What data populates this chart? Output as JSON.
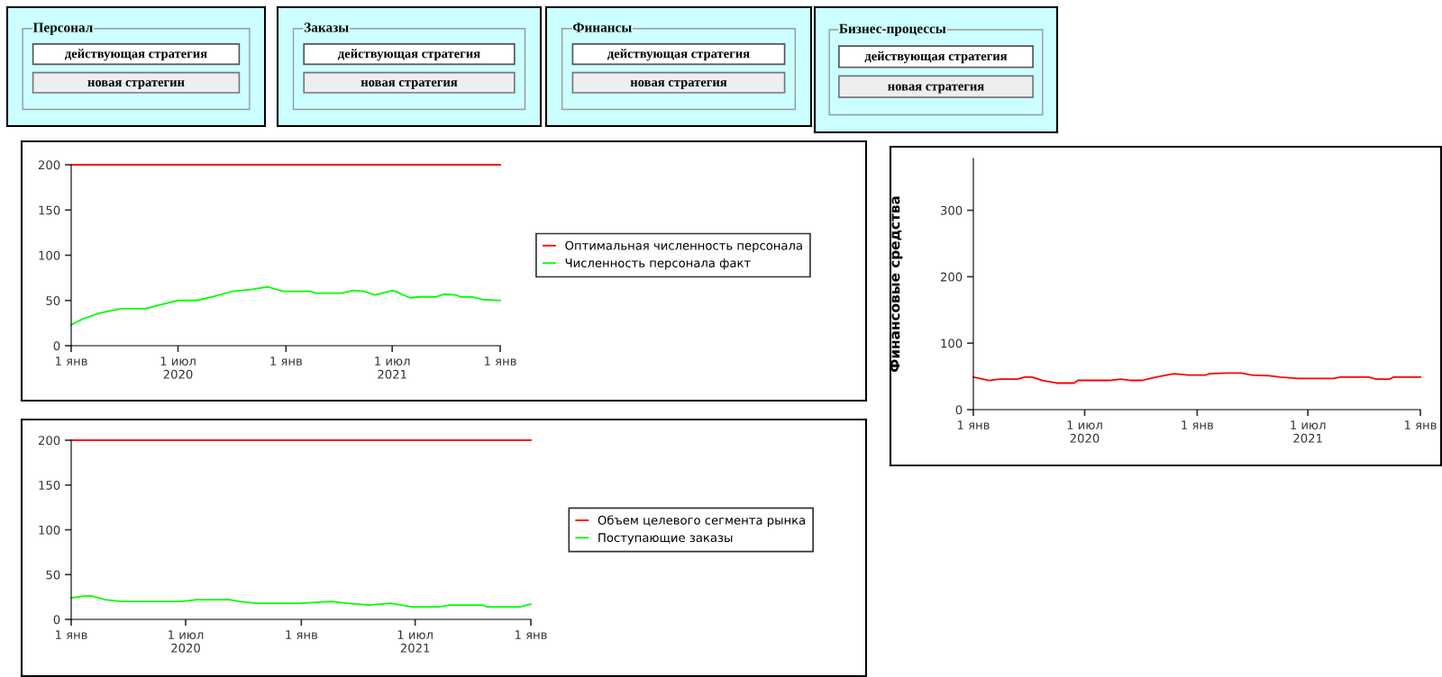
{
  "chart_data": [
    {
      "type": "other",
      "title": "Персонал",
      "annotations": [
        "действующая стратегия",
        "новая стратегин"
      ]
    },
    {
      "type": "other",
      "title": "Заказы",
      "annotations": [
        "действующая стратегия",
        "новая стратегия"
      ]
    },
    {
      "type": "other",
      "title": "Финансы",
      "annotations": [
        "действующая стратегия",
        "новая стратегия"
      ]
    },
    {
      "type": "other",
      "title": "Бизнес-процессы",
      "annotations": [
        "действующая стратегия",
        "новая стратегия"
      ]
    },
    {
      "type": "line",
      "legend": "right",
      "grid": false,
      "xlim": [
        "2020-01-01",
        "2022-01-01"
      ],
      "ylim": [
        0,
        200
      ],
      "yticks": [
        0,
        50,
        100,
        150,
        200
      ],
      "xticks": [
        {
          "value": "2020-01-01",
          "label": "1 янв"
        },
        {
          "value": "2020-07-01",
          "label": "1 июл\n2020"
        },
        {
          "value": "2021-01-01",
          "label": "1 янв"
        },
        {
          "value": "2021-07-01",
          "label": "1 июл\n2021"
        },
        {
          "value": "2022-01-01",
          "label": "1 янв"
        }
      ],
      "series": [
        {
          "name": "Оптимальная численность персонала",
          "color": "#ff0000",
          "x": [
            "2020-01-01",
            "2022-01-01"
          ],
          "values": [
            200,
            200
          ]
        },
        {
          "name": "Численность персонала факт",
          "color": "#00ff00",
          "x": [
            "2020-01-01",
            "2020-01-22",
            "2020-02-18",
            "2020-03-26",
            "2020-05-07",
            "2020-05-30",
            "2020-07-01",
            "2020-08-02",
            "2020-08-29",
            "2020-10-01",
            "2020-11-02",
            "2020-12-01",
            "2020-12-27",
            "2021-02-11",
            "2021-02-20",
            "2021-04-07",
            "2021-04-25",
            "2021-05-14",
            "2021-06-01",
            "2021-07-03",
            "2021-07-31",
            "2021-08-18",
            "2021-09-14",
            "2021-09-28",
            "2021-10-17",
            "2021-10-26",
            "2021-11-13",
            "2021-12-02",
            "2022-01-01"
          ],
          "values": [
            23,
            30,
            36,
            41,
            41,
            45,
            50,
            50,
            54,
            60,
            62,
            65,
            60,
            60,
            58,
            58,
            61,
            60,
            56,
            61,
            53,
            54,
            54,
            57,
            56,
            54,
            54,
            51,
            50
          ]
        }
      ]
    },
    {
      "type": "line",
      "legend": "right",
      "grid": false,
      "xlim": [
        "2020-01-01",
        "2022-01-01"
      ],
      "ylim": [
        0,
        200
      ],
      "yticks": [
        0,
        50,
        100,
        150,
        200
      ],
      "xticks": [
        {
          "value": "2020-01-01",
          "label": "1 янв"
        },
        {
          "value": "2020-07-01",
          "label": "1 июл\n2020"
        },
        {
          "value": "2021-01-01",
          "label": "1 янв"
        },
        {
          "value": "2021-07-01",
          "label": "1 июл\n2021"
        },
        {
          "value": "2022-01-01",
          "label": "1 янв"
        }
      ],
      "series": [
        {
          "name": "Объем целевого сегмента рынка",
          "color": "#ff0000",
          "x": [
            "2020-01-01",
            "2022-01-01"
          ],
          "values": [
            200,
            200
          ]
        },
        {
          "name": "Поступающие заказы",
          "color": "#00ff00",
          "x": [
            "2020-01-01",
            "2020-01-21",
            "2020-02-03",
            "2020-02-24",
            "2020-03-21",
            "2020-05-03",
            "2020-06-23",
            "2020-07-19",
            "2020-09-08",
            "2020-09-25",
            "2020-10-21",
            "2020-12-29",
            "2021-02-18",
            "2021-03-16",
            "2021-04-19",
            "2021-05-23",
            "2021-06-26",
            "2021-08-08",
            "2021-08-25",
            "2021-10-16",
            "2021-10-24",
            "2021-12-15",
            "2022-01-01"
          ],
          "values": [
            24,
            26,
            26,
            22,
            20,
            20,
            20,
            22,
            22,
            20,
            18,
            18,
            20,
            18,
            16,
            18,
            14,
            14,
            16,
            16,
            14,
            14,
            17
          ]
        }
      ]
    },
    {
      "type": "line",
      "legend": false,
      "grid": false,
      "ylabel": "Финансовые средства",
      "xlim": [
        "2020-01-01",
        "2022-01-01"
      ],
      "ylim": [
        0,
        378
      ],
      "yticks": [
        0,
        100,
        200,
        300
      ],
      "xticks": [
        {
          "value": "2020-01-01",
          "label": "1 янв"
        },
        {
          "value": "2020-07-01",
          "label": "1 июл\n2020"
        },
        {
          "value": "2021-01-01",
          "label": "1 янв"
        },
        {
          "value": "2021-07-01",
          "label": "1 июл\n2021"
        },
        {
          "value": "2022-01-01",
          "label": "1 янв"
        }
      ],
      "series": [
        {
          "color": "#ff0000",
          "x": [
            "2020-01-01",
            "2020-01-27",
            "2020-02-13",
            "2020-03-13",
            "2020-03-25",
            "2020-04-06",
            "2020-04-23",
            "2020-05-16",
            "2020-06-14",
            "2020-06-20",
            "2020-08-11",
            "2020-08-29",
            "2020-09-15",
            "2020-10-03",
            "2020-10-26",
            "2020-11-24",
            "2020-12-17",
            "2021-01-15",
            "2021-01-21",
            "2021-02-19",
            "2021-03-14",
            "2021-03-31",
            "2021-04-29",
            "2021-05-17",
            "2021-06-15",
            "2021-08-12",
            "2021-08-23",
            "2021-10-09",
            "2021-10-20",
            "2021-11-12",
            "2021-11-18",
            "2022-01-01"
          ],
          "values": [
            49,
            44,
            46,
            46,
            49,
            49,
            44,
            40,
            40,
            44,
            44,
            46,
            44,
            44,
            49,
            54,
            52,
            52,
            54,
            55,
            55,
            52,
            51,
            49,
            47,
            47,
            49,
            49,
            46,
            46,
            49,
            49
          ]
        }
      ]
    }
  ]
}
